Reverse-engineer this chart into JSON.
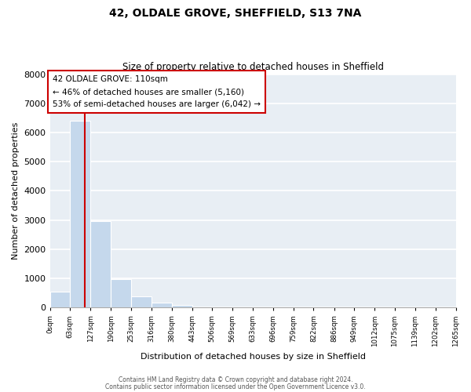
{
  "title": "42, OLDALE GROVE, SHEFFIELD, S13 7NA",
  "subtitle": "Size of property relative to detached houses in Sheffield",
  "xlabel": "Distribution of detached houses by size in Sheffield",
  "ylabel": "Number of detached properties",
  "bar_values": [
    550,
    6400,
    2950,
    975,
    375,
    155,
    75,
    0,
    0,
    0,
    0,
    0,
    0,
    0,
    0,
    0,
    0,
    0,
    0,
    0
  ],
  "bar_edges": [
    0,
    63,
    127,
    190,
    253,
    316,
    380,
    443,
    506,
    569,
    633,
    696,
    759,
    822,
    886,
    949,
    1012,
    1075,
    1139,
    1202,
    1265
  ],
  "tick_labels": [
    "0sqm",
    "63sqm",
    "127sqm",
    "190sqm",
    "253sqm",
    "316sqm",
    "380sqm",
    "443sqm",
    "506sqm",
    "569sqm",
    "633sqm",
    "696sqm",
    "759sqm",
    "822sqm",
    "886sqm",
    "949sqm",
    "1012sqm",
    "1075sqm",
    "1139sqm",
    "1202sqm",
    "1265sqm"
  ],
  "bar_color": "#c5d8ec",
  "bar_edgecolor": "white",
  "property_line_x": 110,
  "property_line_color": "#cc0000",
  "annotation_line1": "42 OLDALE GROVE: 110sqm",
  "annotation_line2": "← 46% of detached houses are smaller (5,160)",
  "annotation_line3": "53% of semi-detached houses are larger (6,042) →",
  "ylim": [
    0,
    8000
  ],
  "yticks": [
    0,
    1000,
    2000,
    3000,
    4000,
    5000,
    6000,
    7000,
    8000
  ],
  "footer_line1": "Contains HM Land Registry data © Crown copyright and database right 2024.",
  "footer_line2": "Contains public sector information licensed under the Open Government Licence v3.0.",
  "bg_color": "#ffffff",
  "plot_bg_color": "#e8eef4"
}
